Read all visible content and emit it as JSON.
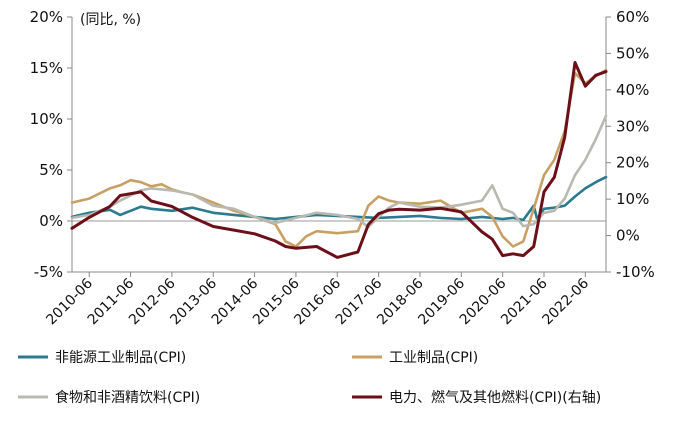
{
  "chart_data": {
    "type": "line",
    "unit_note": "(同比, %)",
    "x_range": [
      "2010-01",
      "2022-12"
    ],
    "x_ticks": [
      "2010-06",
      "2011-06",
      "2012-06",
      "2013-06",
      "2014-06",
      "2015-06",
      "2016-06",
      "2017-06",
      "2018-06",
      "2019-06",
      "2020-06",
      "2021-06",
      "2022-06"
    ],
    "y_left": {
      "min": -5,
      "max": 20,
      "ticks": [
        -5,
        0,
        5,
        10,
        15,
        20
      ],
      "tick_labels": [
        "-5%",
        "0%",
        "5%",
        "10%",
        "15%",
        "20%"
      ]
    },
    "y_right": {
      "min": -10,
      "max": 60,
      "ticks": [
        -10,
        0,
        10,
        20,
        30,
        40,
        50,
        60
      ],
      "tick_labels": [
        "-10%",
        "0%",
        "10%",
        "20%",
        "30%",
        "40%",
        "50%",
        "60%"
      ]
    },
    "legend": {
      "position": "bottom",
      "columns": 2
    },
    "series": [
      {
        "name": "非能源工业制品(CPI)",
        "color": "#2a7a90",
        "axis": "left",
        "points": [
          [
            "2010-01",
            0.4
          ],
          [
            "2010-06",
            0.8
          ],
          [
            "2010-12",
            1.1
          ],
          [
            "2011-03",
            0.6
          ],
          [
            "2011-06",
            1.0
          ],
          [
            "2011-09",
            1.4
          ],
          [
            "2011-12",
            1.2
          ],
          [
            "2012-06",
            1.0
          ],
          [
            "2012-12",
            1.3
          ],
          [
            "2013-06",
            0.8
          ],
          [
            "2013-12",
            0.6
          ],
          [
            "2014-06",
            0.4
          ],
          [
            "2014-12",
            0.2
          ],
          [
            "2015-06",
            0.4
          ],
          [
            "2015-12",
            0.6
          ],
          [
            "2016-06",
            0.5
          ],
          [
            "2016-12",
            0.4
          ],
          [
            "2017-06",
            0.3
          ],
          [
            "2017-12",
            0.4
          ],
          [
            "2018-06",
            0.5
          ],
          [
            "2018-12",
            0.3
          ],
          [
            "2019-06",
            0.2
          ],
          [
            "2019-12",
            0.4
          ],
          [
            "2020-06",
            0.2
          ],
          [
            "2020-09",
            0.3
          ],
          [
            "2020-12",
            0.1
          ],
          [
            "2021-03",
            1.5
          ],
          [
            "2021-04",
            0.2
          ],
          [
            "2021-06",
            1.2
          ],
          [
            "2021-09",
            1.3
          ],
          [
            "2021-12",
            1.5
          ],
          [
            "2022-03",
            2.4
          ],
          [
            "2022-06",
            3.2
          ],
          [
            "2022-09",
            3.8
          ],
          [
            "2022-12",
            4.3
          ]
        ]
      },
      {
        "name": "工业制品(CPI)",
        "color": "#c9a064",
        "axis": "left",
        "points": [
          [
            "2010-01",
            1.8
          ],
          [
            "2010-06",
            2.2
          ],
          [
            "2010-12",
            3.2
          ],
          [
            "2011-03",
            3.5
          ],
          [
            "2011-06",
            4.0
          ],
          [
            "2011-09",
            3.8
          ],
          [
            "2011-12",
            3.4
          ],
          [
            "2012-03",
            3.6
          ],
          [
            "2012-06",
            3.1
          ],
          [
            "2012-09",
            2.8
          ],
          [
            "2012-12",
            2.6
          ],
          [
            "2013-06",
            1.8
          ],
          [
            "2013-12",
            1.0
          ],
          [
            "2014-06",
            0.4
          ],
          [
            "2014-12",
            -0.3
          ],
          [
            "2015-03",
            -2.0
          ],
          [
            "2015-06",
            -2.5
          ],
          [
            "2015-09",
            -1.5
          ],
          [
            "2015-12",
            -1.0
          ],
          [
            "2016-06",
            -1.2
          ],
          [
            "2016-12",
            -1.0
          ],
          [
            "2017-03",
            1.5
          ],
          [
            "2017-06",
            2.4
          ],
          [
            "2017-09",
            2.0
          ],
          [
            "2017-12",
            1.8
          ],
          [
            "2018-06",
            1.7
          ],
          [
            "2018-12",
            2.0
          ],
          [
            "2019-06",
            0.8
          ],
          [
            "2019-12",
            1.2
          ],
          [
            "2020-03",
            0.4
          ],
          [
            "2020-06",
            -1.5
          ],
          [
            "2020-09",
            -2.5
          ],
          [
            "2020-12",
            -2.0
          ],
          [
            "2021-03",
            1.2
          ],
          [
            "2021-06",
            4.5
          ],
          [
            "2021-09",
            6.0
          ],
          [
            "2021-12",
            8.8
          ],
          [
            "2022-03",
            14.5
          ],
          [
            "2022-06",
            13.5
          ],
          [
            "2022-09",
            14.2
          ],
          [
            "2022-12",
            14.8
          ]
        ]
      },
      {
        "name": "食物和非酒精饮料(CPI)",
        "color": "#b9b9b0",
        "axis": "left",
        "points": [
          [
            "2010-01",
            0.3
          ],
          [
            "2010-06",
            0.6
          ],
          [
            "2010-12",
            1.4
          ],
          [
            "2011-03",
            2.0
          ],
          [
            "2011-06",
            2.5
          ],
          [
            "2011-09",
            3.0
          ],
          [
            "2011-12",
            3.2
          ],
          [
            "2012-06",
            3.0
          ],
          [
            "2012-12",
            2.6
          ],
          [
            "2013-06",
            1.5
          ],
          [
            "2013-12",
            1.2
          ],
          [
            "2014-06",
            0.4
          ],
          [
            "2014-12",
            -0.2
          ],
          [
            "2015-06",
            0.3
          ],
          [
            "2015-12",
            0.8
          ],
          [
            "2016-06",
            0.6
          ],
          [
            "2016-12",
            0.2
          ],
          [
            "2017-03",
            -0.6
          ],
          [
            "2017-06",
            0.4
          ],
          [
            "2017-09",
            1.3
          ],
          [
            "2017-12",
            1.8
          ],
          [
            "2018-06",
            1.4
          ],
          [
            "2018-12",
            1.3
          ],
          [
            "2019-06",
            1.6
          ],
          [
            "2019-12",
            2.0
          ],
          [
            "2020-03",
            3.5
          ],
          [
            "2020-06",
            1.2
          ],
          [
            "2020-09",
            0.8
          ],
          [
            "2020-12",
            -0.5
          ],
          [
            "2021-03",
            -0.3
          ],
          [
            "2021-06",
            0.8
          ],
          [
            "2021-09",
            1.0
          ],
          [
            "2021-12",
            2.2
          ],
          [
            "2022-03",
            4.5
          ],
          [
            "2022-06",
            6.0
          ],
          [
            "2022-09",
            8.0
          ],
          [
            "2022-12",
            10.3
          ]
        ]
      },
      {
        "name": "电力、燃气及其他燃料(CPI)(右轴)",
        "color": "#6b0f19",
        "axis": "right",
        "points": [
          [
            "2010-01",
            2.0
          ],
          [
            "2010-06",
            5.0
          ],
          [
            "2010-12",
            8.0
          ],
          [
            "2011-03",
            11.0
          ],
          [
            "2011-06",
            11.5
          ],
          [
            "2011-09",
            12.0
          ],
          [
            "2011-12",
            9.5
          ],
          [
            "2012-06",
            8.0
          ],
          [
            "2012-12",
            5.0
          ],
          [
            "2013-06",
            2.5
          ],
          [
            "2013-12",
            1.5
          ],
          [
            "2014-06",
            0.5
          ],
          [
            "2014-12",
            -1.5
          ],
          [
            "2015-03",
            -3.0
          ],
          [
            "2015-06",
            -3.5
          ],
          [
            "2015-12",
            -3.0
          ],
          [
            "2016-06",
            -6.0
          ],
          [
            "2016-12",
            -4.5
          ],
          [
            "2017-03",
            3.0
          ],
          [
            "2017-06",
            6.0
          ],
          [
            "2017-09",
            7.0
          ],
          [
            "2017-12",
            7.2
          ],
          [
            "2018-06",
            7.0
          ],
          [
            "2018-12",
            7.5
          ],
          [
            "2019-06",
            6.5
          ],
          [
            "2019-12",
            1.0
          ],
          [
            "2020-03",
            -1.0
          ],
          [
            "2020-06",
            -5.5
          ],
          [
            "2020-09",
            -5.0
          ],
          [
            "2020-12",
            -5.5
          ],
          [
            "2021-03",
            -3.0
          ],
          [
            "2021-06",
            12.0
          ],
          [
            "2021-09",
            16.0
          ],
          [
            "2021-12",
            27.0
          ],
          [
            "2022-03",
            47.5
          ],
          [
            "2022-06",
            41.0
          ],
          [
            "2022-09",
            44.0
          ],
          [
            "2022-12",
            45.0
          ]
        ]
      }
    ]
  }
}
